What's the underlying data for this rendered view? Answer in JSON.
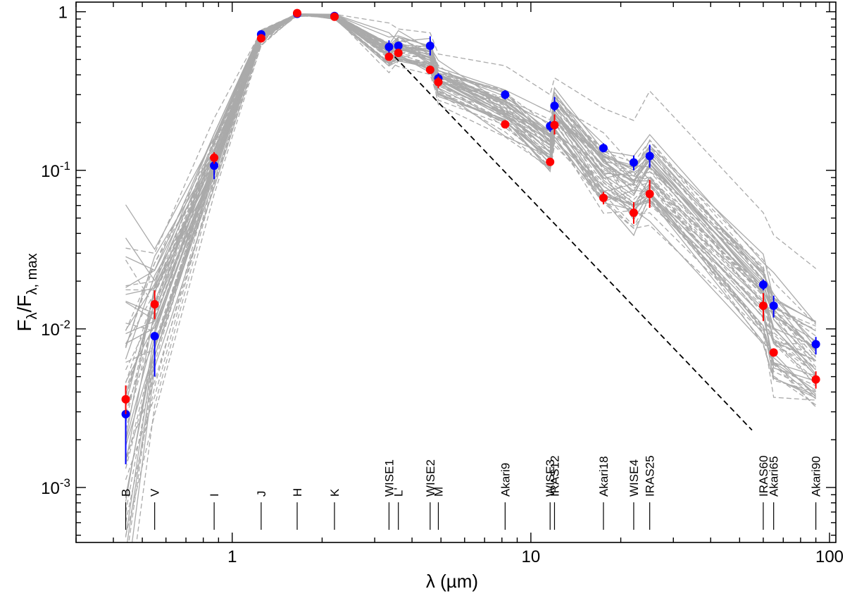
{
  "chart_data": {
    "type": "scatter",
    "xscale": "log",
    "yscale": "log",
    "xlim": [
      0.3,
      105
    ],
    "ylim": [
      0.00045,
      1.15
    ],
    "xlabel": "λ (µm)",
    "ylabel_main": "F",
    "ylabel_sub1": "λ",
    "ylabel_slash": "/F",
    "ylabel_sub2": "λ, max",
    "x_major_ticks": [
      1,
      10,
      100
    ],
    "x_tick_labels": [
      "1",
      "10",
      "100"
    ],
    "y_major_ticks": [
      0.001,
      0.01,
      0.1,
      1
    ],
    "y_tick_labels": [
      {
        "mant": "10",
        "exp": "-3"
      },
      {
        "mant": "10",
        "exp": "-2"
      },
      {
        "mant": "10",
        "exp": "-1"
      },
      {
        "mant": "1",
        "exp": ""
      }
    ],
    "bands": [
      {
        "name": "B",
        "wl": 0.44
      },
      {
        "name": "V",
        "wl": 0.55
      },
      {
        "name": "I",
        "wl": 0.87
      },
      {
        "name": "J",
        "wl": 1.25
      },
      {
        "name": "H",
        "wl": 1.65
      },
      {
        "name": "K",
        "wl": 2.2
      },
      {
        "name": "WISE1",
        "wl": 3.35
      },
      {
        "name": "L'",
        "wl": 3.6
      },
      {
        "name": "WISE2",
        "wl": 4.6
      },
      {
        "name": "M",
        "wl": 4.9
      },
      {
        "name": "Akari9",
        "wl": 8.2
      },
      {
        "name": "WISE3",
        "wl": 11.6
      },
      {
        "name": "IRAS12",
        "wl": 12.0
      },
      {
        "name": "Akari18",
        "wl": 17.5
      },
      {
        "name": "WISE4",
        "wl": 22.1
      },
      {
        "name": "IRAS25",
        "wl": 25.0
      },
      {
        "name": "IRAS60",
        "wl": 60.0
      },
      {
        "name": "Akari65",
        "wl": 65.0
      },
      {
        "name": "Akari90",
        "wl": 90.0
      }
    ],
    "series": [
      {
        "name": "blue",
        "color": "#0000ff",
        "points": [
          {
            "x": 0.44,
            "y": 0.0029,
            "lo": 0.0014,
            "hi": 0.0031
          },
          {
            "x": 0.55,
            "y": 0.009,
            "lo": 0.005,
            "hi": 0.0095
          },
          {
            "x": 0.87,
            "y": 0.107,
            "lo": 0.088,
            "hi": 0.118
          },
          {
            "x": 1.25,
            "y": 0.72,
            "lo": 0.7,
            "hi": 0.74
          },
          {
            "x": 1.65,
            "y": 0.97,
            "lo": 0.96,
            "hi": 0.98
          },
          {
            "x": 2.2,
            "y": 0.94,
            "lo": 0.92,
            "hi": 0.96
          },
          {
            "x": 3.35,
            "y": 0.6,
            "lo": 0.55,
            "hi": 0.66
          },
          {
            "x": 3.6,
            "y": 0.61,
            "lo": 0.58,
            "hi": 0.64
          },
          {
            "x": 4.6,
            "y": 0.61,
            "lo": 0.53,
            "hi": 0.7
          },
          {
            "x": 4.9,
            "y": 0.38,
            "lo": 0.35,
            "hi": 0.41
          },
          {
            "x": 8.2,
            "y": 0.3,
            "lo": 0.28,
            "hi": 0.32
          },
          {
            "x": 11.6,
            "y": 0.19,
            "lo": 0.175,
            "hi": 0.205
          },
          {
            "x": 12.0,
            "y": 0.255,
            "lo": 0.235,
            "hi": 0.29
          },
          {
            "x": 17.5,
            "y": 0.138,
            "lo": 0.13,
            "hi": 0.148
          },
          {
            "x": 22.1,
            "y": 0.112,
            "lo": 0.1,
            "hi": 0.124
          },
          {
            "x": 25.0,
            "y": 0.123,
            "lo": 0.104,
            "hi": 0.145
          },
          {
            "x": 60.0,
            "y": 0.019,
            "lo": 0.0175,
            "hi": 0.0205
          },
          {
            "x": 65.0,
            "y": 0.014,
            "lo": 0.0118,
            "hi": 0.0162
          },
          {
            "x": 90.0,
            "y": 0.008,
            "lo": 0.0069,
            "hi": 0.0089
          }
        ]
      },
      {
        "name": "red",
        "color": "#ff0000",
        "points": [
          {
            "x": 0.44,
            "y": 0.0036,
            "lo": 0.0029,
            "hi": 0.0044
          },
          {
            "x": 0.55,
            "y": 0.0143,
            "lo": 0.0115,
            "hi": 0.0175
          },
          {
            "x": 0.87,
            "y": 0.12,
            "lo": 0.11,
            "hi": 0.13
          },
          {
            "x": 1.25,
            "y": 0.68,
            "lo": 0.66,
            "hi": 0.7
          },
          {
            "x": 1.65,
            "y": 0.98,
            "lo": 0.97,
            "hi": 0.99
          },
          {
            "x": 2.2,
            "y": 0.93,
            "lo": 0.91,
            "hi": 0.95
          },
          {
            "x": 3.35,
            "y": 0.52,
            "lo": 0.49,
            "hi": 0.55
          },
          {
            "x": 3.6,
            "y": 0.55,
            "lo": 0.52,
            "hi": 0.58
          },
          {
            "x": 4.6,
            "y": 0.43,
            "lo": 0.41,
            "hi": 0.45
          },
          {
            "x": 4.9,
            "y": 0.36,
            "lo": 0.33,
            "hi": 0.39
          },
          {
            "x": 8.2,
            "y": 0.195,
            "lo": 0.188,
            "hi": 0.202
          },
          {
            "x": 11.6,
            "y": 0.113,
            "lo": 0.107,
            "hi": 0.119
          },
          {
            "x": 12.0,
            "y": 0.193,
            "lo": 0.168,
            "hi": 0.225
          },
          {
            "x": 17.5,
            "y": 0.067,
            "lo": 0.061,
            "hi": 0.073
          },
          {
            "x": 22.1,
            "y": 0.054,
            "lo": 0.046,
            "hi": 0.063
          },
          {
            "x": 25.0,
            "y": 0.071,
            "lo": 0.058,
            "hi": 0.087
          },
          {
            "x": 60.0,
            "y": 0.014,
            "lo": 0.0112,
            "hi": 0.0168
          },
          {
            "x": 65.0,
            "y": 0.0071,
            "lo": 0.0068,
            "hi": 0.0074
          },
          {
            "x": 90.0,
            "y": 0.0048,
            "lo": 0.0042,
            "hi": 0.0054
          }
        ]
      }
    ],
    "model_line": {
      "x": [
        3.5,
        55
      ],
      "y": [
        0.52,
        0.0023
      ],
      "style": "dashed",
      "color": "#000000"
    },
    "model_curves": {
      "solid_count": 24,
      "dashed_count": 28,
      "color": "#aaaaaa"
    }
  }
}
